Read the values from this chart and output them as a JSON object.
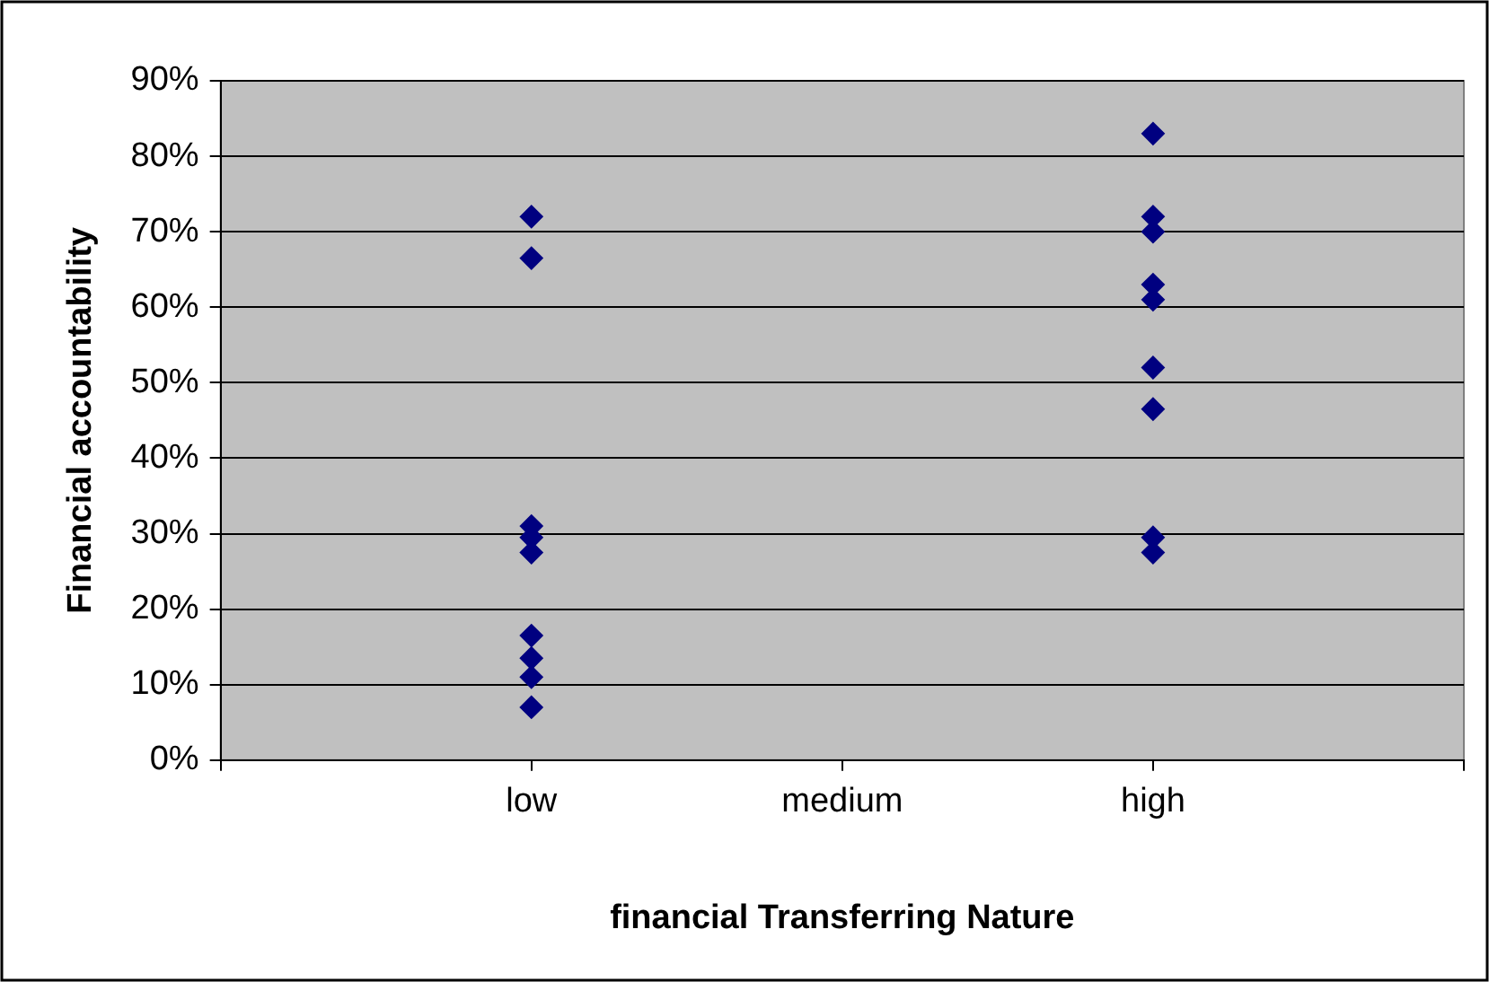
{
  "chart_data": {
    "type": "scatter",
    "xlabel": "financial Transferring Nature",
    "ylabel": "Financial accountability",
    "categories": [
      null,
      "low",
      "medium",
      "high",
      null
    ],
    "series": [
      {
        "color": "#000080",
        "x": [
          "low",
          "low",
          "low",
          "low",
          "low",
          "low",
          "low",
          "low",
          "low",
          "high",
          "high",
          "high",
          "high",
          "high",
          "high",
          "high",
          "high",
          "high"
        ],
        "values": [
          72,
          66.5,
          31,
          29.5,
          27.5,
          16.5,
          13.5,
          11,
          7,
          83,
          72,
          70,
          63,
          61,
          52,
          46.5,
          29.5,
          27.5
        ]
      }
    ],
    "ylim": [
      0,
      90
    ],
    "yticks": [
      {
        "value": 0,
        "label": "0%"
      },
      {
        "value": 10,
        "label": "10%"
      },
      {
        "value": 20,
        "label": "20%"
      },
      {
        "value": 30,
        "label": "30%"
      },
      {
        "value": 40,
        "label": "40%"
      },
      {
        "value": 50,
        "label": "50%"
      },
      {
        "value": 60,
        "label": "60%"
      },
      {
        "value": 70,
        "label": "70%"
      },
      {
        "value": 80,
        "label": "80%"
      },
      {
        "value": 90,
        "label": "90%"
      }
    ],
    "grid": "y",
    "legend": false,
    "marker": "diamond"
  }
}
